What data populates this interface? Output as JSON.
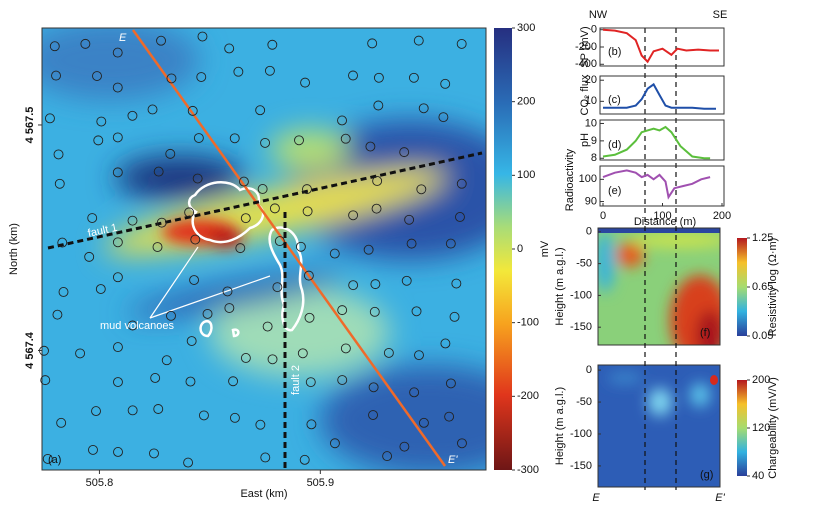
{
  "chart_data": [
    {
      "type": "heatmap",
      "panel": "(a)",
      "x_label": "East (km)",
      "y_label": "North (km)",
      "xlim": [
        505.774,
        505.975
      ],
      "ylim": [
        4567.347,
        4567.543
      ],
      "xticks": [
        505.8,
        505.9
      ],
      "yticks": [
        {
          "value": 4567.4,
          "label": "4 567.4"
        },
        {
          "value": 4567.5,
          "label": "4 567.5"
        }
      ],
      "colorbar": {
        "label": "mV",
        "lim": [
          -300,
          300
        ],
        "ticks": [
          -300,
          -200,
          -100,
          0,
          100,
          200,
          300
        ]
      },
      "annotations": {
        "profile_start": "E",
        "profile_end": "E'",
        "fault_1": "fault 1",
        "fault_2": "fault 2",
        "mud_volcanoes": "mud volcanoes"
      }
    },
    {
      "type": "line",
      "panel": "(b)",
      "y_label": "SP (mV)",
      "left_label": "NW",
      "right_label": "SE",
      "color": "#e02424",
      "xlim": [
        0,
        200
      ],
      "ylim": [
        -420,
        20
      ],
      "yticks": [
        -400,
        -200,
        0
      ],
      "x": [
        0,
        20,
        40,
        55,
        65,
        75,
        85,
        100,
        115,
        125,
        140,
        160,
        180,
        195
      ],
      "values": [
        0,
        -10,
        -40,
        -120,
        -300,
        -370,
        -250,
        -220,
        -290,
        -220,
        -240,
        -230,
        -240,
        -240
      ]
    },
    {
      "type": "line",
      "panel": "(c)",
      "y_label": "CO₂ flux",
      "color": "#1f4fa8",
      "xlim": [
        0,
        200
      ],
      "ylim": [
        4,
        22
      ],
      "yticks": [
        10,
        20
      ],
      "x": [
        0,
        20,
        40,
        55,
        65,
        75,
        85,
        95,
        105,
        115,
        130,
        150,
        170,
        190
      ],
      "values": [
        7,
        7,
        7,
        8,
        11,
        16,
        18,
        13,
        8,
        7,
        7,
        7,
        6.5,
        6.5
      ]
    },
    {
      "type": "line",
      "panel": "(d)",
      "y_label": "pH",
      "color": "#5bbf3c",
      "xlim": [
        0,
        200
      ],
      "ylim": [
        7.9,
        10.2
      ],
      "yticks": [
        8,
        9,
        10
      ],
      "x": [
        0,
        20,
        40,
        55,
        65,
        75,
        85,
        95,
        105,
        115,
        130,
        150,
        170,
        180
      ],
      "values": [
        8.1,
        8.2,
        8.5,
        9,
        9.5,
        9.6,
        9.7,
        9.6,
        9.8,
        9.5,
        8.7,
        8.1,
        8,
        8
      ]
    },
    {
      "type": "line",
      "panel": "(e)",
      "y_label": "Radioactivity",
      "x_label": "Distance (m)",
      "color": "#a050b0",
      "xlim": [
        0,
        200
      ],
      "ylim": [
        88,
        106
      ],
      "yticks": [
        90,
        100
      ],
      "xticks": [
        0,
        100,
        200
      ],
      "x": [
        0,
        20,
        40,
        55,
        65,
        75,
        85,
        95,
        105,
        110,
        120,
        135,
        150,
        165,
        180
      ],
      "values": [
        101,
        103,
        104,
        103,
        101,
        102,
        100,
        102,
        99,
        92,
        96,
        97,
        98,
        100,
        101
      ]
    },
    {
      "type": "section",
      "panel": "(f)",
      "y_label": "Height (m a.g.l.)",
      "ylim": [
        -178,
        6
      ],
      "yticks": [
        0,
        -50,
        -100,
        -150
      ],
      "colorbar": {
        "label": "Resistivity log (Ω·m)",
        "lim": [
          0.05,
          1.25
        ],
        "ticks": [
          0.05,
          0.65,
          1.25
        ]
      }
    },
    {
      "type": "section",
      "panel": "(g)",
      "y_label": "Height (m a.g.l.)",
      "left_label": "E",
      "right_label": "E'",
      "ylim": [
        -183,
        8
      ],
      "yticks": [
        0,
        -50,
        -100,
        -150
      ],
      "colorbar": {
        "label": "Chargeability (mV/V)",
        "lim": [
          40,
          200
        ],
        "ticks": [
          40,
          120,
          200
        ]
      }
    }
  ]
}
